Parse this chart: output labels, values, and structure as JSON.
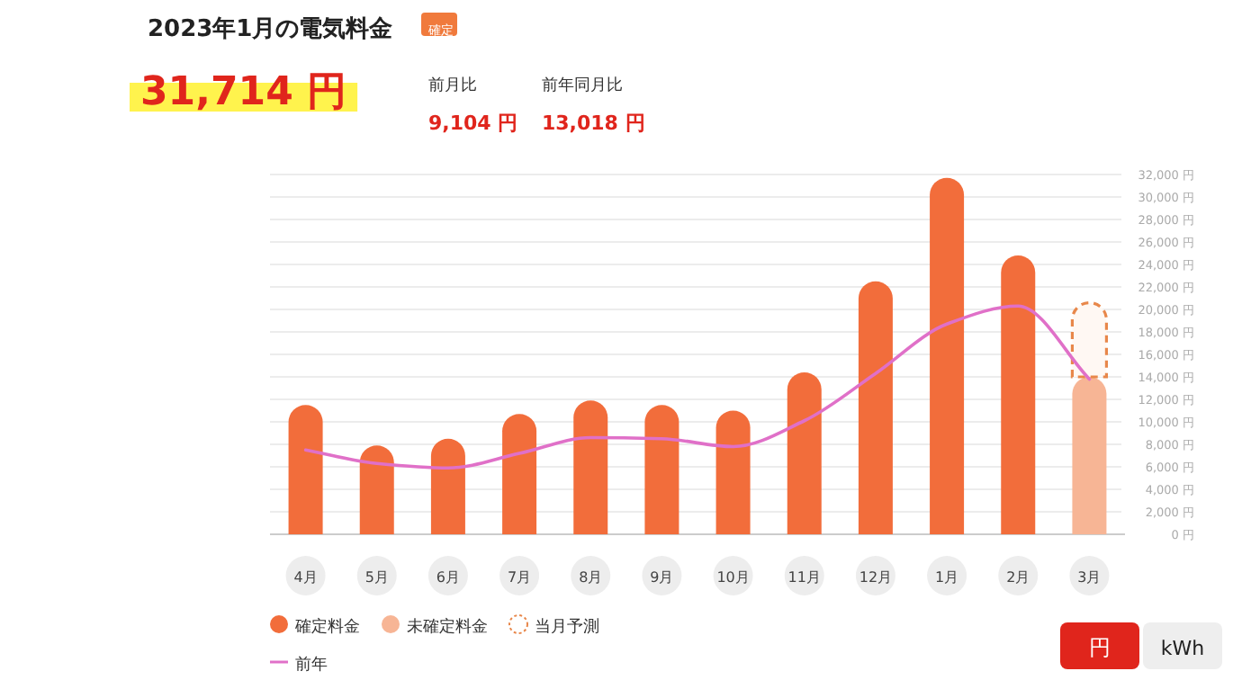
{
  "chart_data": {
    "type": "bar",
    "title": "2023年1月の電気料金",
    "annotations": [
      "確定",
      "31,714 円",
      "前月比",
      "9,104 円",
      "前年同月比",
      "13,018 円",
      "円",
      "kWh"
    ],
    "categories": [
      "4月",
      "5月",
      "6月",
      "7月",
      "8月",
      "9月",
      "10月",
      "11月",
      "12月",
      "1月",
      "2月",
      "3月"
    ],
    "stacked": true,
    "series": [
      {
        "name": "確定料金",
        "color": "#f26d3b",
        "values": [
          11500,
          7900,
          8500,
          10700,
          11900,
          11500,
          11000,
          14400,
          22500,
          31700,
          24800,
          null
        ]
      },
      {
        "name": "未確定料金",
        "color": "#f7b595",
        "values": [
          null,
          null,
          null,
          null,
          null,
          null,
          null,
          null,
          null,
          null,
          null,
          14000
        ]
      },
      {
        "name": "当月予測",
        "color": "#e8874a",
        "line_style": "dashed",
        "values": [
          null,
          null,
          null,
          null,
          null,
          null,
          null,
          null,
          null,
          null,
          null,
          6600
        ]
      },
      {
        "name": "前年",
        "type": "line",
        "color": "#e070c8",
        "values": [
          7500,
          6300,
          5900,
          7200,
          8600,
          8500,
          7800,
          10100,
          14300,
          18700,
          20300,
          13800
        ]
      }
    ],
    "ylim": [
      0,
      32000
    ],
    "yticks": [
      {
        "value": 0,
        "label": "0 円"
      },
      {
        "value": 2000,
        "label": "2,000 円"
      },
      {
        "value": 4000,
        "label": "4,000 円"
      },
      {
        "value": 6000,
        "label": "6,000 円"
      },
      {
        "value": 8000,
        "label": "8,000 円"
      },
      {
        "value": 10000,
        "label": "10,000 円"
      },
      {
        "value": 12000,
        "label": "12,000 円"
      },
      {
        "value": 14000,
        "label": "14,000 円"
      },
      {
        "value": 16000,
        "label": "16,000 円"
      },
      {
        "value": 18000,
        "label": "18,000 円"
      },
      {
        "value": 20000,
        "label": "20,000 円"
      },
      {
        "value": 22000,
        "label": "22,000 円"
      },
      {
        "value": 24000,
        "label": "24,000 円"
      },
      {
        "value": 26000,
        "label": "26,000 円"
      },
      {
        "value": 28000,
        "label": "28,000 円"
      },
      {
        "value": 30000,
        "label": "30,000 円"
      },
      {
        "value": 32000,
        "label": "32,000 円"
      }
    ],
    "grid": "y",
    "legend": "bottom left"
  }
}
